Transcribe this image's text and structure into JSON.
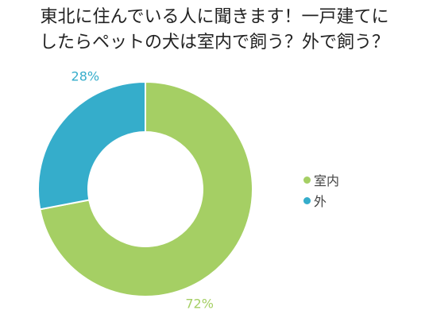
{
  "title_lines": [
    "東北に住んでいる人に聞きます！一戸建てに",
    "したらペットの犬は室内で飼う？外で飼う？"
  ],
  "chart_data": {
    "type": "pie",
    "donut": true,
    "title": "東北に住んでいる人に聞きます！一戸建てにしたらペットの犬は室内で飼う？外で飼う？",
    "categories": [
      "室内",
      "外"
    ],
    "values": [
      72,
      28
    ],
    "value_labels": [
      "72%",
      "28%"
    ],
    "colors": [
      "#a5cf64",
      "#35adcb"
    ],
    "start_angle": "top (12 o'clock), clockwise",
    "legend_position": "right"
  }
}
